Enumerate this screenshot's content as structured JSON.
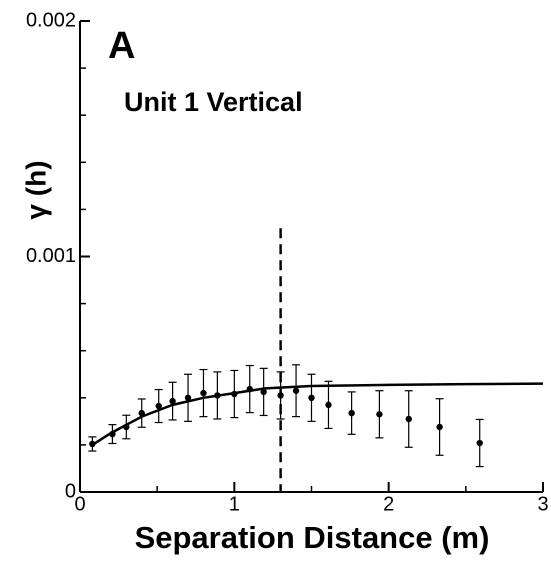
{
  "chart_data": {
    "type": "scatter",
    "panel_label": "A",
    "title": "Unit 1 Vertical",
    "xlabel": "Separation Distance (m)",
    "ylabel": "γ (h)",
    "xlim": [
      0,
      3
    ],
    "ylim": [
      0,
      0.002
    ],
    "xticks": [
      0,
      1,
      2,
      3
    ],
    "yticks": [
      0,
      0.001,
      0.002
    ],
    "xticks_minor": [
      0.5,
      1.5,
      2.5
    ],
    "yticks_minor": [
      0.0002,
      0.0004,
      0.0006,
      0.0008,
      0.0012,
      0.0014,
      0.0016,
      0.0018
    ],
    "color": "#000000",
    "points": {
      "x": [
        0.08,
        0.21,
        0.3,
        0.4,
        0.51,
        0.6,
        0.7,
        0.8,
        0.89,
        1.0,
        1.1,
        1.19,
        1.3,
        1.4,
        1.5,
        1.61,
        1.76,
        1.94,
        2.13,
        2.33,
        2.59
      ],
      "values": [
        0.000204,
        0.000246,
        0.000276,
        0.000335,
        0.000365,
        0.000386,
        0.0004,
        0.00042,
        0.00041,
        0.000416,
        0.000437,
        0.000425,
        0.00041,
        0.00043,
        0.0004,
        0.00037,
        0.000335,
        0.00033,
        0.00031,
        0.000276,
        0.000208
      ],
      "errors": [
        3e-05,
        4e-05,
        5e-05,
        6e-05,
        7e-05,
        8e-05,
        0.0001,
        0.0001,
        0.0001,
        0.0001,
        0.0001,
        0.0001,
        0.0001,
        0.00011,
        0.0001,
        0.0001,
        9e-05,
        0.0001,
        0.00012,
        0.00012,
        0.0001
      ]
    },
    "fit": {
      "x": [
        0.08,
        0.2,
        0.4,
        0.6,
        0.8,
        1.0,
        1.2,
        1.5,
        2.0,
        2.5,
        3.0
      ],
      "values": [
        0.0002,
        0.00025,
        0.00032,
        0.00037,
        0.0004,
        0.00042,
        0.00044,
        0.00045,
        0.000455,
        0.000458,
        0.00046
      ]
    },
    "vline": {
      "x": 1.3,
      "y_top": 0.00112
    }
  }
}
